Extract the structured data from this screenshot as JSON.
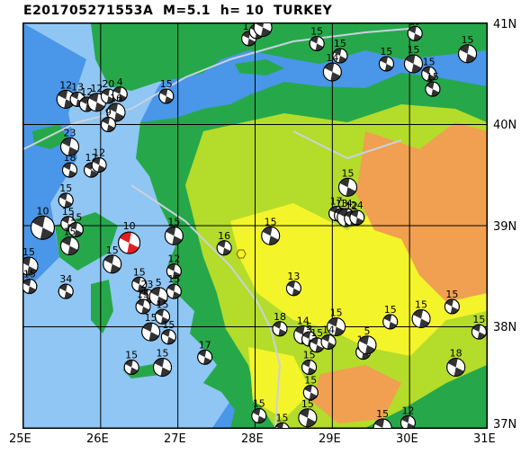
{
  "title": "E201705271553A  M=5.1  h= 10  TURKEY",
  "lat_labels": [
    "41N",
    "40N",
    "39N",
    "38N",
    "37N"
  ],
  "lon_labels": [
    "25E",
    "26E",
    "27E",
    "28E",
    "29E",
    "30E",
    "31E"
  ],
  "extent": {
    "lon": [
      25,
      31
    ],
    "lat": [
      37,
      41
    ]
  },
  "colors": {
    "deep_sea": "#4a96e8",
    "shallow_sea": "#8fc6f4",
    "lowland": "#26a84a",
    "hills": "#b4dc2a",
    "plateau": "#f4f42a",
    "highland": "#f0a050",
    "grid": "#000000",
    "fault": "#c8d2e0",
    "mainshock": "#e02020"
  },
  "mainshock": {
    "lon": 26.37,
    "lat": 38.83,
    "label": "10"
  },
  "focal_mechanisms": [
    {
      "lon": 25.25,
      "lat": 38.98,
      "label": "10"
    },
    {
      "lon": 25.58,
      "lat": 39.02,
      "label": "15"
    },
    {
      "lon": 25.68,
      "lat": 38.96,
      "label": "15"
    },
    {
      "lon": 25.6,
      "lat": 38.8,
      "label": "15"
    },
    {
      "lon": 25.55,
      "lat": 39.25,
      "label": "15"
    },
    {
      "lon": 25.6,
      "lat": 39.55,
      "label": "18"
    },
    {
      "lon": 25.6,
      "lat": 39.78,
      "label": "23"
    },
    {
      "lon": 25.88,
      "lat": 39.55,
      "label": "12"
    },
    {
      "lon": 25.98,
      "lat": 39.6,
      "label": "12"
    },
    {
      "lon": 25.07,
      "lat": 38.6,
      "label": "15"
    },
    {
      "lon": 25.08,
      "lat": 38.4,
      "label": "15"
    },
    {
      "lon": 25.55,
      "lat": 38.35,
      "label": "34"
    },
    {
      "lon": 25.55,
      "lat": 40.25,
      "label": "12"
    },
    {
      "lon": 25.7,
      "lat": 40.25,
      "label": "13"
    },
    {
      "lon": 25.82,
      "lat": 40.2,
      "label": "12"
    },
    {
      "lon": 25.95,
      "lat": 40.22,
      "label": "12"
    },
    {
      "lon": 26.1,
      "lat": 40.28,
      "label": "20"
    },
    {
      "lon": 26.25,
      "lat": 40.3,
      "label": "4"
    },
    {
      "lon": 26.2,
      "lat": 40.12,
      "label": "16"
    },
    {
      "lon": 26.1,
      "lat": 40.0,
      "label": "9"
    },
    {
      "lon": 26.85,
      "lat": 40.28,
      "label": "15"
    },
    {
      "lon": 26.15,
      "lat": 38.62,
      "label": "15"
    },
    {
      "lon": 26.5,
      "lat": 38.42,
      "label": "15"
    },
    {
      "lon": 26.6,
      "lat": 38.3,
      "label": "23"
    },
    {
      "lon": 26.75,
      "lat": 38.3,
      "label": "5"
    },
    {
      "lon": 26.55,
      "lat": 38.2,
      "label": "15"
    },
    {
      "lon": 26.8,
      "lat": 38.1,
      "label": "15"
    },
    {
      "lon": 26.95,
      "lat": 38.9,
      "label": "15"
    },
    {
      "lon": 26.95,
      "lat": 38.55,
      "label": "12"
    },
    {
      "lon": 26.95,
      "lat": 38.35,
      "label": "15"
    },
    {
      "lon": 26.65,
      "lat": 37.95,
      "label": "15"
    },
    {
      "lon": 26.88,
      "lat": 37.9,
      "label": "15"
    },
    {
      "lon": 26.4,
      "lat": 37.6,
      "label": "15"
    },
    {
      "lon": 26.8,
      "lat": 37.6,
      "label": "15"
    },
    {
      "lon": 27.35,
      "lat": 37.7,
      "label": "17"
    },
    {
      "lon": 27.6,
      "lat": 38.78,
      "label": "16"
    },
    {
      "lon": 28.2,
      "lat": 38.9,
      "label": "15"
    },
    {
      "lon": 28.5,
      "lat": 38.38,
      "label": "13"
    },
    {
      "lon": 28.32,
      "lat": 37.98,
      "label": "18"
    },
    {
      "lon": 28.62,
      "lat": 37.92,
      "label": "14"
    },
    {
      "lon": 28.7,
      "lat": 37.88,
      "label": "5"
    },
    {
      "lon": 28.8,
      "lat": 37.82,
      "label": "15"
    },
    {
      "lon": 29.05,
      "lat": 38.0,
      "label": "15"
    },
    {
      "lon": 28.95,
      "lat": 37.85,
      "label": "14"
    },
    {
      "lon": 29.4,
      "lat": 37.75,
      "label": "16"
    },
    {
      "lon": 29.45,
      "lat": 37.82,
      "label": "5"
    },
    {
      "lon": 28.7,
      "lat": 37.6,
      "label": "15"
    },
    {
      "lon": 28.72,
      "lat": 37.35,
      "label": "15"
    },
    {
      "lon": 28.68,
      "lat": 37.1,
      "label": "15"
    },
    {
      "lon": 28.05,
      "lat": 37.12,
      "label": "15"
    },
    {
      "lon": 28.35,
      "lat": 36.98,
      "label": "15"
    },
    {
      "lon": 29.65,
      "lat": 37.0,
      "label": "15"
    },
    {
      "lon": 29.98,
      "lat": 37.05,
      "label": "12"
    },
    {
      "lon": 29.75,
      "lat": 38.05,
      "label": "15"
    },
    {
      "lon": 30.15,
      "lat": 38.08,
      "label": "15"
    },
    {
      "lon": 30.55,
      "lat": 38.2,
      "label": "15"
    },
    {
      "lon": 30.9,
      "lat": 37.95,
      "label": "15"
    },
    {
      "lon": 30.6,
      "lat": 37.6,
      "label": "18"
    },
    {
      "lon": 29.05,
      "lat": 39.12,
      "label": "17"
    },
    {
      "lon": 29.12,
      "lat": 39.1,
      "label": "13"
    },
    {
      "lon": 29.18,
      "lat": 39.08,
      "label": "14"
    },
    {
      "lon": 29.25,
      "lat": 39.07,
      "label": "12"
    },
    {
      "lon": 29.32,
      "lat": 39.08,
      "label": "24"
    },
    {
      "lon": 29.2,
      "lat": 39.38,
      "label": "15"
    },
    {
      "lon": 27.92,
      "lat": 40.85,
      "label": "12"
    },
    {
      "lon": 28.02,
      "lat": 40.92,
      "label": "12"
    },
    {
      "lon": 28.1,
      "lat": 40.96,
      "label": "19"
    },
    {
      "lon": 28.8,
      "lat": 40.8,
      "label": "15"
    },
    {
      "lon": 29.1,
      "lat": 40.68,
      "label": "15"
    },
    {
      "lon": 29.0,
      "lat": 40.52,
      "label": "14"
    },
    {
      "lon": 29.7,
      "lat": 40.6,
      "label": "15"
    },
    {
      "lon": 30.07,
      "lat": 40.9,
      "label": "15"
    },
    {
      "lon": 30.05,
      "lat": 40.6,
      "label": "15"
    },
    {
      "lon": 30.25,
      "lat": 40.5,
      "label": "15"
    },
    {
      "lon": 30.3,
      "lat": 40.35,
      "label": "15"
    },
    {
      "lon": 30.75,
      "lat": 40.7,
      "label": "15"
    }
  ]
}
